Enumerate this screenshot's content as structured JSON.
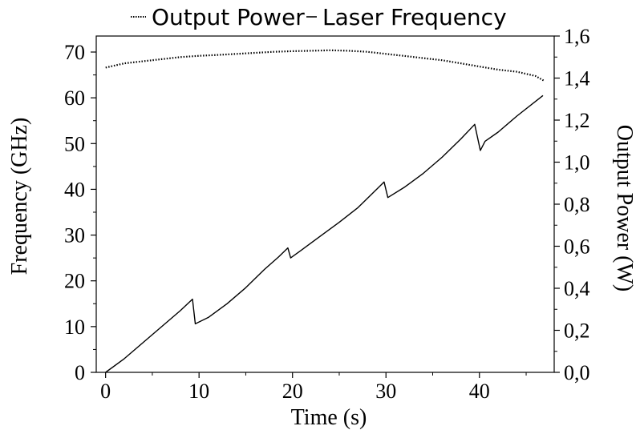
{
  "chart_data": {
    "type": "line",
    "legend": {
      "placement": "top",
      "entries": [
        {
          "label": "Output Power",
          "style": "dotted"
        },
        {
          "label": "Laser Frequency",
          "style": "solid"
        }
      ]
    },
    "xlabel": "Time (s)",
    "ylabel_left": "Frequency (GHz)",
    "ylabel_right": "Output Power (W)",
    "xlim": [
      -1,
      48
    ],
    "ylim_left": [
      0,
      73.5
    ],
    "ylim_right": [
      0,
      1.6
    ],
    "x_ticks": [
      "0",
      "10",
      "20",
      "30",
      "40"
    ],
    "y_left_ticks": [
      "0",
      "10",
      "20",
      "30",
      "40",
      "50",
      "60",
      "70"
    ],
    "y_right_ticks": [
      "0,0",
      "0,2",
      "0,4",
      "0,6",
      "0,8",
      "1,0",
      "1,2",
      "1,4",
      "1,6"
    ],
    "grid": false,
    "color": "#000000",
    "series": [
      {
        "name": "Laser Frequency",
        "axis": "left",
        "x": [
          0,
          2,
          4,
          6,
          8,
          9.3,
          9.6,
          11,
          13,
          15,
          17,
          18.5,
          19.5,
          19.8,
          21,
          23,
          25,
          27,
          28.5,
          29.8,
          30.2,
          32,
          34,
          36,
          38,
          39.5,
          40.1,
          40.6,
          42,
          44,
          46.8
        ],
        "y": [
          0,
          3,
          6.5,
          10,
          13.5,
          16,
          10.6,
          12,
          15,
          18.5,
          22.5,
          25.2,
          27.2,
          25,
          26.8,
          29.8,
          32.8,
          36,
          39,
          41.6,
          38.2,
          40.5,
          43.5,
          47,
          51,
          54.2,
          48.5,
          50.5,
          52.5,
          56,
          60.5
        ]
      },
      {
        "name": "Output Power",
        "axis": "right",
        "x": [
          0,
          1,
          2,
          3,
          4,
          5,
          6,
          7,
          8,
          9,
          10,
          12,
          14,
          16,
          18,
          20,
          22,
          24,
          26,
          28,
          30,
          32,
          34,
          36,
          38,
          40,
          42,
          44,
          46,
          47
        ],
        "y": [
          1.45,
          1.46,
          1.47,
          1.475,
          1.48,
          1.485,
          1.49,
          1.495,
          1.5,
          1.503,
          1.506,
          1.51,
          1.515,
          1.52,
          1.525,
          1.528,
          1.53,
          1.532,
          1.53,
          1.525,
          1.515,
          1.505,
          1.495,
          1.485,
          1.47,
          1.455,
          1.44,
          1.43,
          1.41,
          1.385
        ]
      }
    ]
  }
}
